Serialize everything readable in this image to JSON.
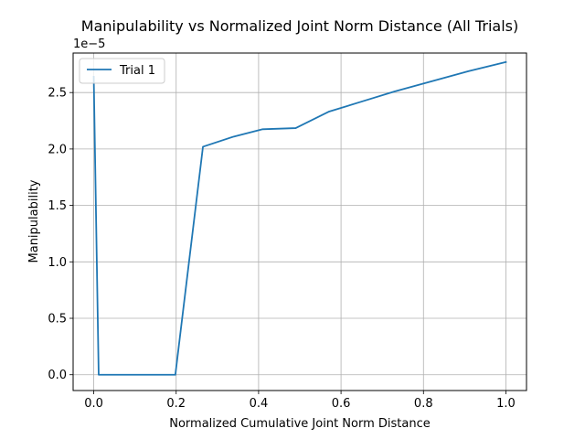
{
  "chart_data": {
    "type": "line",
    "title": "Manipulability vs Normalized Joint Norm Distance (All Trials)",
    "xlabel": "Normalized Cumulative Joint Norm Distance",
    "ylabel": "Manipulability",
    "offset_label": "1e−5",
    "xlim": [
      -0.05,
      1.05
    ],
    "ylim": [
      -0.14,
      2.85
    ],
    "x_ticks": [
      0.0,
      0.2,
      0.4,
      0.6,
      0.8,
      1.0
    ],
    "x_tick_labels": [
      "0.0",
      "0.2",
      "0.4",
      "0.6",
      "0.8",
      "1.0"
    ],
    "y_ticks": [
      0.0,
      0.5,
      1.0,
      1.5,
      2.0,
      2.5
    ],
    "y_tick_labels": [
      "0.0",
      "0.5",
      "1.0",
      "1.5",
      "2.0",
      "2.5"
    ],
    "grid": true,
    "legend_position": "upper-left",
    "series": [
      {
        "name": "Trial 1",
        "color": "#1f77b4",
        "x": [
          0.0,
          0.012,
          0.05,
          0.1,
          0.15,
          0.198,
          0.265,
          0.34,
          0.41,
          0.49,
          0.57,
          0.65,
          0.73,
          0.82,
          0.91,
          1.0
        ],
        "y": [
          2.64,
          0.0,
          0.0,
          0.0,
          0.0,
          0.0,
          2.02,
          2.11,
          2.175,
          2.185,
          2.33,
          2.42,
          2.51,
          2.6,
          2.69,
          2.77
        ]
      }
    ]
  }
}
